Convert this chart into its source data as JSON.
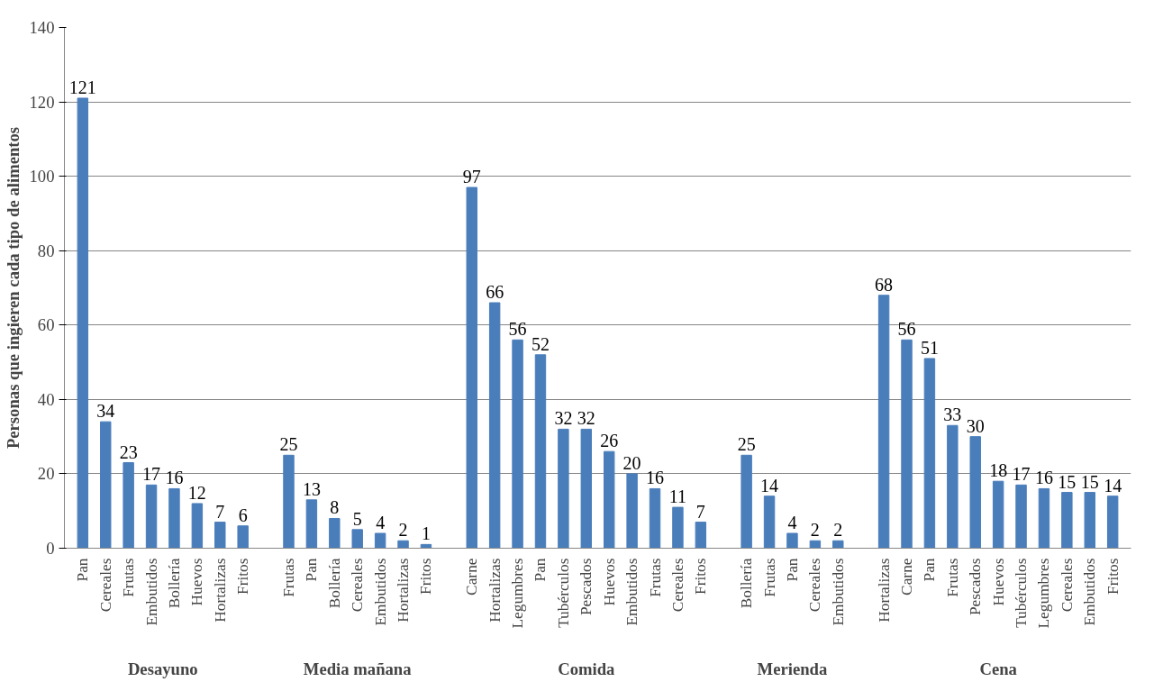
{
  "chart_data": {
    "type": "bar",
    "ylabel": "Personas que ingieren cada tipo de alimentos",
    "categories": [
      "Pan",
      "Cereales",
      "Frutas",
      "Embutidos",
      "Bollería",
      "Huevos",
      "Hortalizas",
      "Fritos",
      null,
      "Frutas",
      "Pan",
      "Bollería",
      "Cereales",
      "Embutidos",
      "Hortalizas",
      "Fritos",
      null,
      "Carne",
      "Hortalizas",
      "Legumbres",
      "Pan",
      "Tubérculos",
      "Pescados",
      "Huevos",
      "Embutidos",
      "Frutas",
      "Cereales",
      "Fritos",
      null,
      "Bollería",
      "Frutas",
      "Pan",
      "Cereales",
      "Embutidos",
      null,
      "Hortalizas",
      "Carne",
      "Pan",
      "Frutas",
      "Pescados",
      "Huevos",
      "Tubérculos",
      "Legumbres",
      "Cereales",
      "Embutidos",
      "Fritos"
    ],
    "values": [
      121,
      34,
      23,
      17,
      16,
      12,
      7,
      6,
      null,
      25,
      13,
      8,
      5,
      4,
      2,
      1,
      null,
      97,
      66,
      56,
      52,
      32,
      32,
      26,
      20,
      16,
      11,
      7,
      null,
      25,
      14,
      4,
      2,
      2,
      null,
      68,
      56,
      51,
      33,
      30,
      18,
      17,
      16,
      15,
      15,
      14
    ],
    "color": "#4a7ebb",
    "annotations": [
      "Desayuno",
      "Media mañana",
      "Comida",
      "Merienda",
      "Cena"
    ],
    "ylim": [
      0,
      140
    ],
    "yticks": [
      0,
      20,
      40,
      60,
      80,
      100,
      120,
      140
    ],
    "grid": "y",
    "data_labels": true
  }
}
